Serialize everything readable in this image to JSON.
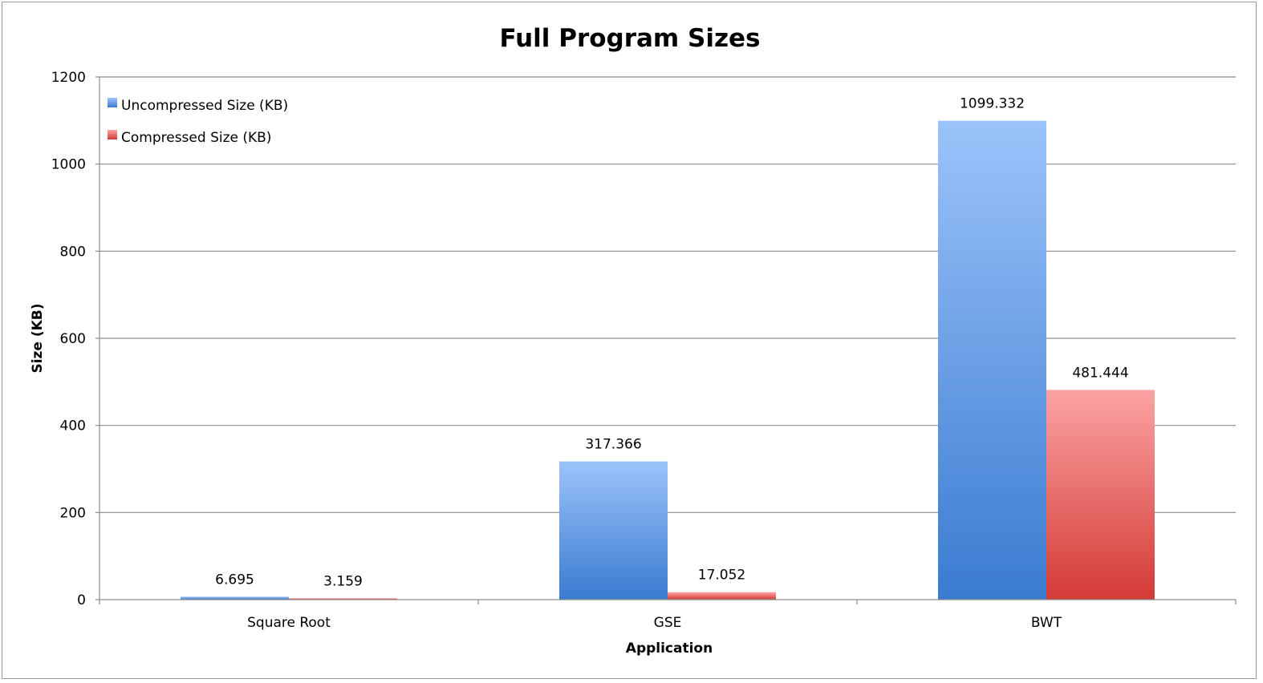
{
  "chart_data": {
    "type": "bar",
    "title": "Full Program Sizes",
    "xlabel": "Application",
    "ylabel": "Size (KB)",
    "categories": [
      "Square Root",
      "GSE",
      "BWT"
    ],
    "series": [
      {
        "name": "Uncompressed Size (KB)",
        "values": [
          6.695,
          317.366,
          1099.332
        ],
        "labels": [
          "6.695",
          "317.366",
          "1099.332"
        ],
        "color_top": "#9cc3fb",
        "color_bottom": "#3a7bd0"
      },
      {
        "name": "Compressed Size (KB)",
        "values": [
          3.159,
          17.052,
          481.444
        ],
        "labels": [
          "3.159",
          "17.052",
          "481.444"
        ],
        "color_top": "#fca3a3",
        "color_bottom": "#d33a36"
      }
    ],
    "ylim": [
      0,
      1200
    ],
    "yticks": [
      0,
      200,
      400,
      600,
      800,
      1000,
      1200
    ],
    "grid": true,
    "legend_position": "top-left"
  }
}
